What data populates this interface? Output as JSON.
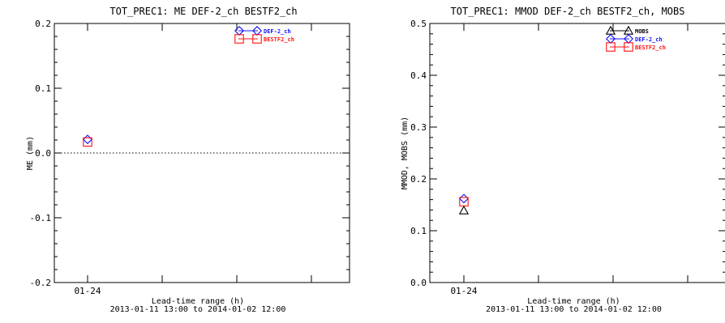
{
  "chart_data": [
    {
      "type": "scatter",
      "title": "TOT_PREC1: ME DEF-2_ch BESTF2_ch",
      "xlabel_line1": "Lead-time range (h)",
      "xlabel_line2": "2013-01-11 13:00 to 2014-01-02 12:00",
      "ylabel": "ME (mm)",
      "categories": [
        "01-24"
      ],
      "ylim": [
        -0.2,
        0.2
      ],
      "yticks": [
        -0.2,
        -0.1,
        0.0,
        0.1,
        0.2
      ],
      "ytick_labels": [
        "-0.2",
        "-0.1",
        "0.0",
        "0.1",
        "0.2"
      ],
      "zero_line": true,
      "legend_position": "top-right",
      "series": [
        {
          "name": "DEF-2_ch",
          "marker": "diamond",
          "color": "#1010ff",
          "values": [
            0.021
          ]
        },
        {
          "name": "BESTF2_ch",
          "marker": "square",
          "color": "#ff1010",
          "values": [
            0.017
          ]
        }
      ]
    },
    {
      "type": "scatter",
      "title": "TOT_PREC1: MMOD DEF-2_ch BESTF2_ch, MOBS",
      "xlabel_line1": "Lead-time range (h)",
      "xlabel_line2": "2013-01-11 13:00 to 2014-01-02 12:00",
      "ylabel": "MMOD, MOBS (mm)",
      "categories": [
        "01-24"
      ],
      "ylim": [
        0.0,
        0.5
      ],
      "yticks": [
        0.0,
        0.1,
        0.2,
        0.3,
        0.4,
        0.5
      ],
      "ytick_labels": [
        "0.0",
        "0.1",
        "0.2",
        "0.3",
        "0.4",
        "0.5"
      ],
      "zero_line": false,
      "legend_position": "top-right",
      "series": [
        {
          "name": "MOBS",
          "marker": "triangle",
          "color": "#000000",
          "values": [
            0.139
          ]
        },
        {
          "name": "DEF-2_ch",
          "marker": "diamond",
          "color": "#1010ff",
          "values": [
            0.162
          ]
        },
        {
          "name": "BESTF2_ch",
          "marker": "square",
          "color": "#ff1010",
          "values": [
            0.156
          ]
        }
      ]
    }
  ]
}
